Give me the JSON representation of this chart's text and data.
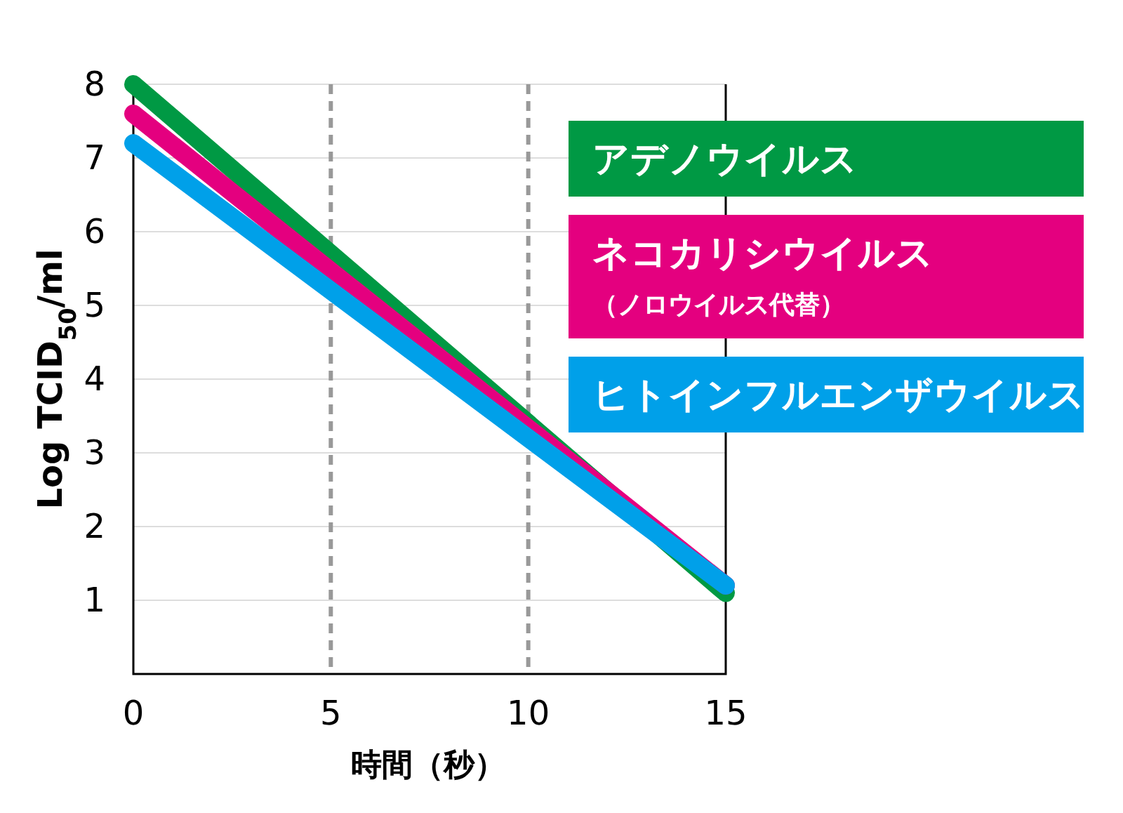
{
  "chart_data": {
    "type": "line",
    "xlabel": "時間（秒）",
    "ylabel": "Log TCID$_{50}$/ml",
    "xlim": [
      0,
      15
    ],
    "xticks": [
      0,
      5,
      10,
      15
    ],
    "ylim": [
      0,
      8
    ],
    "yticks": [
      1,
      2,
      3,
      4,
      5,
      6,
      7,
      8
    ],
    "grid": "y",
    "legend": "right",
    "line_style": "solid",
    "marker": "none",
    "ref_lines": [
      {
        "axis": "x",
        "value": 5,
        "color": "#999999",
        "line_style": "dashed"
      },
      {
        "axis": "x",
        "value": 10,
        "color": "#999999",
        "line_style": "dashed"
      }
    ],
    "x": [
      0,
      15
    ],
    "series": [
      {
        "name": "アデノウイルス",
        "color": "#009944",
        "values": [
          8,
          1.1
        ]
      },
      {
        "name": "ネコカリシウイルス（ノロウイルス代替）",
        "color": "#e4007f",
        "values": [
          7.6,
          1.2
        ]
      },
      {
        "name": "ヒトインフルエンザウイルス",
        "color": "#00a0e9",
        "values": [
          7.2,
          1.2
        ]
      }
    ]
  }
}
